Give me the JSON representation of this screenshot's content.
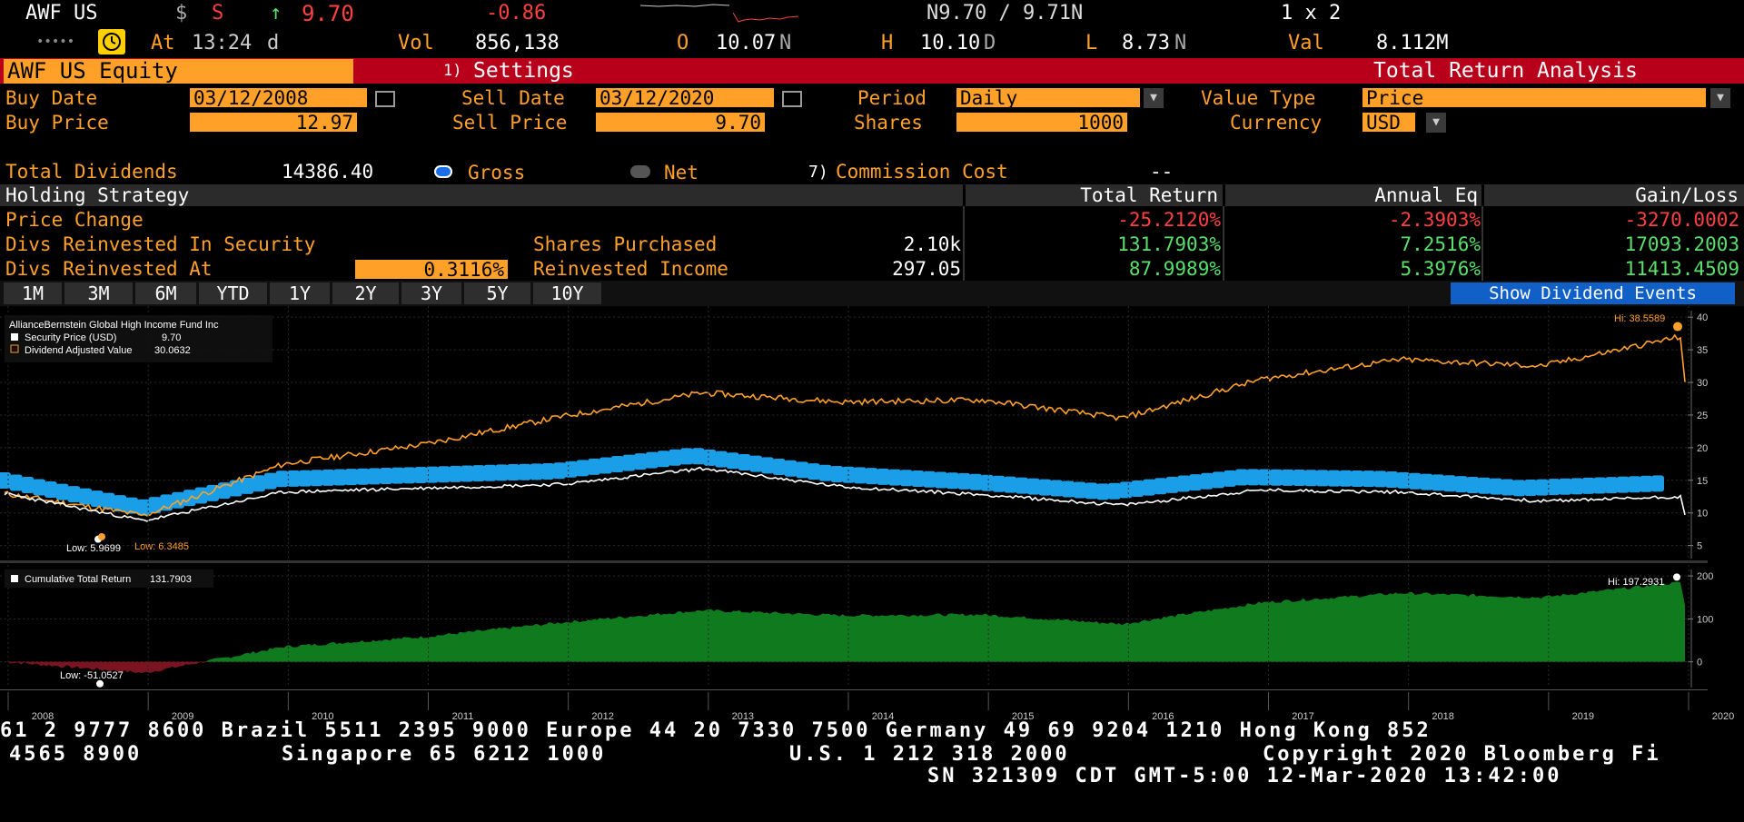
{
  "header": {
    "ticker": "AWF US",
    "currency_symbol": "$",
    "s_flag": "S",
    "arrow": "↑",
    "last_price": "9.70",
    "change": "-0.86",
    "bid_ask": "N9.70 / 9.71N",
    "size": "1 x 2",
    "dots": "•••••",
    "at_label": "At",
    "time": "13:24",
    "time_suffix": "d",
    "vol_label": "Vol",
    "vol_value": "856,138",
    "open_label": "O",
    "open_value": "10.07",
    "open_suffix": "N",
    "high_label": "H",
    "high_value": "10.10",
    "high_suffix": "D",
    "low_label": "L",
    "low_value": "8.73",
    "low_suffix": "N",
    "val_label": "Val",
    "val_value": "8.112M"
  },
  "title_bar": {
    "security": "AWF US Equity",
    "settings_num": "1)",
    "settings_label": "Settings",
    "function_title": "Total Return Analysis"
  },
  "params": {
    "buy_date_label": "Buy Date",
    "buy_date": "03/12/2008",
    "sell_date_label": "Sell Date",
    "sell_date": "03/12/2020",
    "period_label": "Period",
    "period": "Daily",
    "value_type_label": "Value Type",
    "value_type": "Price",
    "buy_price_label": "Buy Price",
    "buy_price": "12.97",
    "sell_price_label": "Sell Price",
    "sell_price": "9.70",
    "shares_label": "Shares",
    "shares": "1000",
    "currency_label": "Currency",
    "currency": "USD"
  },
  "dividends": {
    "total_label": "Total Dividends",
    "total_value": "14386.40",
    "gross_label": "Gross",
    "net_label": "Net",
    "commission_num": "7)",
    "commission_label": "Commission Cost",
    "commission_value": "--"
  },
  "table": {
    "headers": [
      "Holding Strategy",
      "Total Return",
      "Annual Eq",
      "Gain/Loss"
    ],
    "rows": [
      {
        "label": "Price Change",
        "mid_label": "",
        "mid_value": "",
        "total_return": "-25.2120%",
        "annual_eq": "-2.3903%",
        "gain_loss": "-3270.0002"
      },
      {
        "label": "Divs Reinvested In Security",
        "mid_label": "Shares Purchased",
        "mid_value": "2.10k",
        "total_return": "131.7903%",
        "annual_eq": "7.2516%",
        "gain_loss": "17093.2003"
      },
      {
        "label": "Divs Reinvested At",
        "rate": "0.3116%",
        "mid_label": "Reinvested Income",
        "mid_value": "297.05",
        "total_return": "87.9989%",
        "annual_eq": "5.3976%",
        "gain_loss": "11413.4509"
      }
    ]
  },
  "periods": [
    "1M",
    "3M",
    "6M",
    "YTD",
    "1Y",
    "2Y",
    "3Y",
    "5Y",
    "10Y"
  ],
  "show_dividend_events": "Show Dividend Events",
  "legend_top": {
    "fund_name": "AllianceBernstein Global High Income Fund Inc",
    "series1": "Security Price (USD)",
    "series1_value": "9.70",
    "series2": "Dividend Adjusted Value",
    "series2_value": "30.0632"
  },
  "legend_bottom": {
    "series": "Cumulative Total Return",
    "value": "131.7903"
  },
  "annotations": {
    "hi_top": "Hi: 38.5589",
    "low_white": "Low: 5.9699",
    "low_orange": "Low: 6.3485",
    "hi_bottom": "Hi: 197.2931",
    "low_bottom": "Low: -51.0527"
  },
  "colors": {
    "accent_orange": "#ffa028",
    "title_red": "#b8001a",
    "dividend_blue": "#1a9ee8",
    "return_green": "#0f7a1e",
    "return_negative": "#7a1420",
    "show_div_blue": "#1060c8"
  },
  "chart_data": [
    {
      "type": "line",
      "title": "AllianceBernstein Global High Income Fund Inc",
      "ylim": [
        3,
        41
      ],
      "y_ticks": [
        5,
        10,
        15,
        20,
        25,
        30,
        35,
        40
      ],
      "x": [
        "2008",
        "2009",
        "2010",
        "2011",
        "2012",
        "2013",
        "2014",
        "2015",
        "2016",
        "2017",
        "2018",
        "2019",
        "2020"
      ],
      "series": [
        {
          "name": "Security Price (USD)",
          "values": [
            12.97,
            8.8,
            13.2,
            13.8,
            14.4,
            16.8,
            14.0,
            12.8,
            11.2,
            13.5,
            13.2,
            11.8,
            12.5
          ],
          "last": 9.7
        },
        {
          "name": "Dividend Adjusted Value",
          "values": [
            12.97,
            9.6,
            17.5,
            20.5,
            24.8,
            28.4,
            27.0,
            27.3,
            24.5,
            30.5,
            33.5,
            32.5,
            37.0
          ],
          "last": 30.0632
        }
      ]
    },
    {
      "type": "area",
      "ylim": [
        -60,
        215
      ],
      "y_ticks": [
        0,
        100,
        200
      ],
      "x": [
        "2008",
        "2009",
        "2010",
        "2011",
        "2012",
        "2013",
        "2014",
        "2015",
        "2016",
        "2017",
        "2018",
        "2019",
        "2020"
      ],
      "series": [
        {
          "name": "Cumulative Total Return",
          "values": [
            0,
            -26,
            35,
            58,
            92,
            120,
            108,
            110,
            88,
            138,
            160,
            150,
            185
          ],
          "last": 131.7903
        }
      ]
    }
  ],
  "footer": {
    "line1": "61 2 9777 8600 Brazil 5511 2395 9000 Europe 44 20 7330 7500 Germany 49 69 9204 1210 Hong Kong 852",
    "line2a": "4565 8900",
    "line2b": "Singapore 65 6212 1000",
    "line2c": "U.S. 1 212 318 2000",
    "line2d": "Copyright 2020 Bloomberg Fi",
    "line3": "SN 321309 CDT  GMT-5:00 12-Mar-2020 13:42:00"
  }
}
